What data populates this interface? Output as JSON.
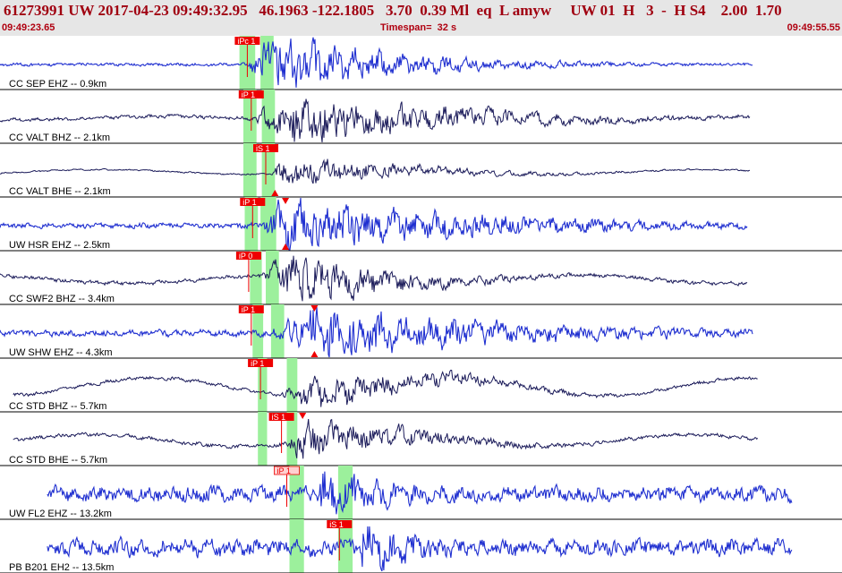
{
  "header": {
    "title": "61273991 UW 2017-04-23 09:49:32.95   46.1963 -122.1805   3.70  0.39 Ml  eq  L amyw     UW 01  H   3  -  H S4    2.00  1.70",
    "start_time": "09:49:23.65",
    "end_time": "09:49:55.55",
    "timespan": "Timespan=  32 s"
  },
  "colors": {
    "header_bg": "#e6e6e6",
    "header_text": "#b00010",
    "trace_blue": "#1f2fd0",
    "trace_navy": "#1b1b5a",
    "pick_red": "#ee0000",
    "pick_pink": "#ffd0d0",
    "window_green": "#9cf09c",
    "label_text": "#000000"
  },
  "chart_data": {
    "type": "line",
    "title": "61273991 UW 2017-04-23 09:49:32.95   46.1963 -122.1805   3.70  0.39 Ml  eq  L amyw     UW 01  H   3  -  H S4    2.00  1.70",
    "xlabel": "",
    "ylabel": "",
    "x_start": "09:49:23.65",
    "x_end": "09:49:55.55",
    "timespan_s": 32,
    "traces": [
      {
        "label": "CC SEP EHZ -- 0.9km",
        "color": "blue",
        "data_start_s": 0.0,
        "data_end_s": 28.6,
        "onset_s": 9.3,
        "peak_s": 10.4,
        "decay": 0.2,
        "noise": 0.05,
        "amp": 1.0,
        "hf": 1.0,
        "baseline": 0.0,
        "picks": [
          {
            "label": "iPc 1",
            "time_s": 9.4,
            "style": "red"
          }
        ],
        "windows": [
          [
            9.1,
            9.7
          ],
          [
            9.9,
            10.4
          ]
        ],
        "markers": []
      },
      {
        "label": "CC VALT BHZ -- 2.1km",
        "color": "navy",
        "data_start_s": 0.0,
        "data_end_s": 28.5,
        "onset_s": 9.4,
        "peak_s": 11.2,
        "decay": 0.15,
        "noise": 0.07,
        "amp": 0.9,
        "hf": 0.8,
        "baseline": 0.15,
        "picks": [
          {
            "label": "iP 1",
            "time_s": 9.55,
            "style": "red"
          }
        ],
        "windows": [
          [
            9.25,
            9.75
          ],
          [
            9.95,
            10.45
          ]
        ],
        "markers": []
      },
      {
        "label": "CC VALT BHE -- 2.1km",
        "color": "navy",
        "data_start_s": 0.0,
        "data_end_s": 28.5,
        "onset_s": 10.3,
        "peak_s": 10.7,
        "decay": 0.2,
        "noise": 0.05,
        "amp": 0.55,
        "hf": 0.7,
        "baseline": 0.2,
        "picks": [
          {
            "label": "iS 1",
            "time_s": 10.1,
            "style": "red"
          }
        ],
        "windows": [
          [
            9.25,
            9.75
          ],
          [
            9.95,
            10.45
          ]
        ],
        "markers": [
          {
            "time_s": 10.45,
            "type": "tri-down"
          },
          {
            "time_s": 10.45,
            "type": "tri-up"
          }
        ]
      },
      {
        "label": "UW HSR EHZ -- 2.5km",
        "color": "blue",
        "data_start_s": 0.0,
        "data_end_s": 28.4,
        "onset_s": 9.9,
        "peak_s": 10.7,
        "decay": 0.12,
        "noise": 0.1,
        "amp": 0.9,
        "hf": 1.0,
        "baseline": 0.0,
        "picks": [
          {
            "label": "iP 1",
            "time_s": 9.6,
            "style": "red"
          }
        ],
        "windows": [
          [
            9.3,
            9.8
          ],
          [
            9.9,
            10.5
          ]
        ],
        "markers": [
          {
            "time_s": 10.85,
            "type": "tri-down"
          },
          {
            "time_s": 10.85,
            "type": "tri-up"
          }
        ]
      },
      {
        "label": "CC SWF2 BHZ -- 3.4km",
        "color": "navy",
        "data_start_s": 0.0,
        "data_end_s": 28.4,
        "onset_s": 9.8,
        "peak_s": 11.2,
        "decay": 0.25,
        "noise": 0.08,
        "amp": 0.9,
        "hf": 0.9,
        "baseline": 0.35,
        "picks": [
          {
            "label": "iP 0",
            "time_s": 9.45,
            "style": "red"
          }
        ],
        "windows": [
          [
            9.5,
            9.95
          ],
          [
            10.1,
            10.6
          ]
        ],
        "markers": []
      },
      {
        "label": "UW SHW EHZ -- 4.3km",
        "color": "blue",
        "data_start_s": 0.0,
        "data_end_s": 28.6,
        "onset_s": 10.0,
        "peak_s": 12.0,
        "decay": 0.12,
        "noise": 0.12,
        "amp": 0.95,
        "hf": 0.8,
        "baseline": 0.0,
        "picks": [
          {
            "label": "iP 1",
            "time_s": 9.55,
            "style": "red"
          }
        ],
        "windows": [
          [
            9.6,
            10.0
          ],
          [
            10.3,
            10.8
          ]
        ],
        "markers": [
          {
            "time_s": 11.95,
            "type": "tri-down"
          },
          {
            "time_s": 11.95,
            "type": "tri-up"
          }
        ]
      },
      {
        "label": "CC STD BHZ -- 5.7km",
        "color": "navy",
        "data_start_s": 0.5,
        "data_end_s": 28.8,
        "onset_s": 10.5,
        "peak_s": 12.0,
        "decay": 0.2,
        "noise": 0.1,
        "amp": 0.6,
        "hf": 1.0,
        "baseline": 0.75,
        "picks": [
          {
            "label": "iP 1",
            "time_s": 9.9,
            "style": "red"
          }
        ],
        "windows": [
          [
            9.8,
            10.15
          ],
          [
            10.9,
            11.3
          ]
        ],
        "markers": []
      },
      {
        "label": "CC STD BHE -- 5.7km",
        "color": "navy",
        "data_start_s": 0.5,
        "data_end_s": 28.8,
        "onset_s": 10.8,
        "peak_s": 11.4,
        "decay": 0.2,
        "noise": 0.1,
        "amp": 0.65,
        "hf": 1.0,
        "baseline": 0.5,
        "picks": [
          {
            "label": "iS 1",
            "time_s": 10.7,
            "style": "red"
          }
        ],
        "windows": [
          [
            9.8,
            10.15
          ],
          [
            10.9,
            11.3
          ]
        ],
        "markers": [
          {
            "time_s": 11.5,
            "type": "tri-down"
          }
        ]
      },
      {
        "label": "UW FL2 EHZ -- 13.2km",
        "color": "blue",
        "data_start_s": 1.8,
        "data_end_s": 30.1,
        "onset_s": 11.8,
        "peak_s": 12.3,
        "decay": 0.3,
        "noise": 0.28,
        "amp": 0.95,
        "hf": 0.9,
        "baseline": 0.0,
        "picks": [
          {
            "label": "iP 1",
            "time_s": 10.9,
            "style": "pink"
          }
        ],
        "windows": [
          [
            11.0,
            11.55
          ],
          [
            12.85,
            13.4
          ]
        ],
        "markers": []
      },
      {
        "label": "PB B201 EH2 -- 13.5km",
        "color": "blue",
        "data_start_s": 1.8,
        "data_end_s": 30.1,
        "onset_s": 13.6,
        "peak_s": 13.7,
        "decay": 0.3,
        "noise": 0.32,
        "amp": 0.9,
        "hf": 1.0,
        "baseline": 0.0,
        "picks": [
          {
            "label": "iS 1",
            "time_s": 12.9,
            "style": "red"
          }
        ],
        "windows": [
          [
            11.0,
            11.55
          ],
          [
            12.85,
            13.4
          ]
        ],
        "markers": []
      }
    ]
  }
}
